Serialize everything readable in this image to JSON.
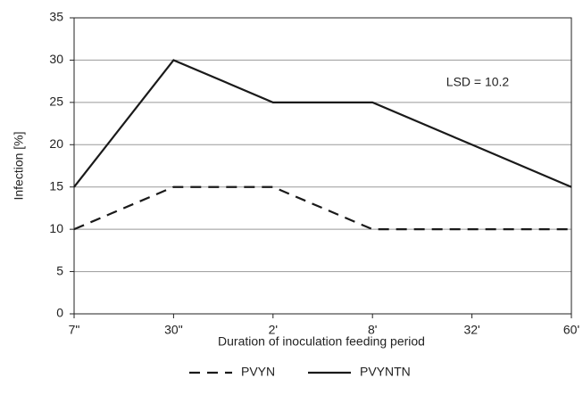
{
  "chart_data": {
    "type": "line",
    "categories": [
      "7\"",
      "30\"",
      "2'",
      "8'",
      "32'",
      "60'"
    ],
    "series": [
      {
        "name": "PVYN",
        "color": "#1a1a1a",
        "dashed": true,
        "values": [
          10,
          15,
          15,
          10,
          10,
          10
        ]
      },
      {
        "name": "PVYNTN",
        "color": "#1a1a1a",
        "dashed": false,
        "values": [
          15,
          30,
          25,
          25,
          20,
          15
        ]
      }
    ],
    "xlabel": "Duration of inoculation feeding period",
    "ylabel": "Infection [%]",
    "annotation": "LSD = 10.2",
    "ylim": [
      0,
      35
    ],
    "yticks": [
      0,
      5,
      10,
      15,
      20,
      25,
      30,
      35
    ],
    "grid": true,
    "legend": "bottom"
  }
}
